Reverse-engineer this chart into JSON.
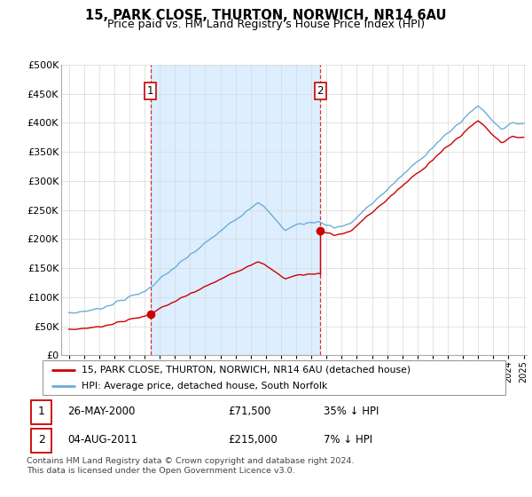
{
  "title": "15, PARK CLOSE, THURTON, NORWICH, NR14 6AU",
  "subtitle": "Price paid vs. HM Land Registry's House Price Index (HPI)",
  "legend_line1": "15, PARK CLOSE, THURTON, NORWICH, NR14 6AU (detached house)",
  "legend_line2": "HPI: Average price, detached house, South Norfolk",
  "footnote": "Contains HM Land Registry data © Crown copyright and database right 2024.\nThis data is licensed under the Open Government Licence v3.0.",
  "sale1_date": "26-MAY-2000",
  "sale1_price": "£71,500",
  "sale1_hpi": "35% ↓ HPI",
  "sale1_year": 2000.38,
  "sale1_value": 71500,
  "sale2_date": "04-AUG-2011",
  "sale2_price": "£215,000",
  "sale2_hpi": "7% ↓ HPI",
  "sale2_year": 2011.59,
  "sale2_value": 215000,
  "hpi_color": "#6baed6",
  "hpi_fill_color": "#ddeeff",
  "price_color": "#cc0000",
  "vline_color": "#cc0000",
  "grid_color": "#d8d8d8",
  "ylim_min": 0,
  "ylim_max": 500000,
  "yticks": [
    0,
    50000,
    100000,
    150000,
    200000,
    250000,
    300000,
    350000,
    400000,
    450000,
    500000
  ],
  "ytick_labels": [
    "£0",
    "£50K",
    "£100K",
    "£150K",
    "£200K",
    "£250K",
    "£300K",
    "£350K",
    "£400K",
    "£450K",
    "£500K"
  ],
  "xmin": 1995,
  "xmax": 2025
}
